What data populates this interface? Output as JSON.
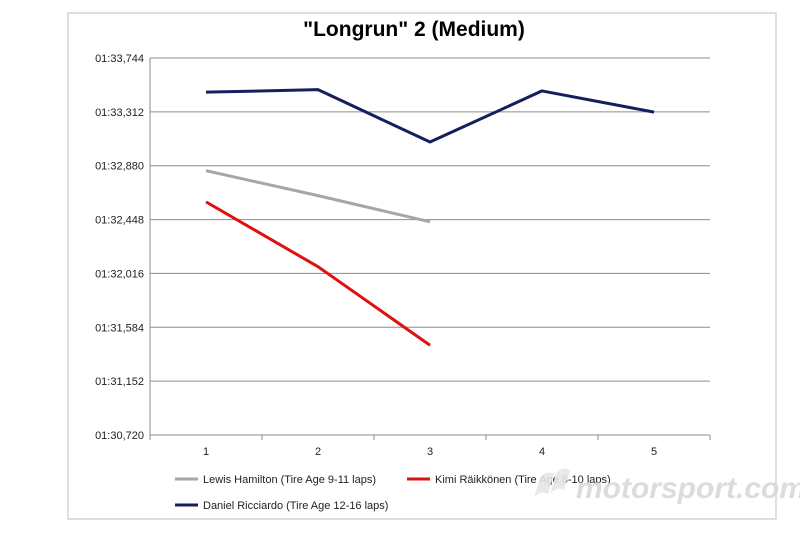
{
  "chart_data": {
    "type": "line",
    "title": "\"Longrun\" 2 (Medium)",
    "xlabel": "",
    "ylabel": "",
    "categories": [
      "1",
      "2",
      "3",
      "4",
      "5"
    ],
    "y_ticks": [
      "01:30,720",
      "01:31,152",
      "01:31,584",
      "01:32,016",
      "01:32,448",
      "01:32,880",
      "01:33,312",
      "01:33,744"
    ],
    "ylim": [
      90.72,
      93.744
    ],
    "y_tick_step": 0.432,
    "grid": "horizontal",
    "legend_position": "bottom",
    "series": [
      {
        "name": "Lewis Hamilton (Tire Age 9-11 laps)",
        "color": "#a6a6a6",
        "values": [
          92.84,
          92.64,
          92.43,
          null,
          null
        ]
      },
      {
        "name": "Kimi Räikkönen (Tire Age 8-10 laps)",
        "color": "#e01010",
        "values": [
          92.59,
          92.07,
          91.44,
          null,
          null
        ]
      },
      {
        "name": "Daniel Ricciardo (Tire Age 12-16 laps)",
        "color": "#14205e",
        "values": [
          93.47,
          93.49,
          93.07,
          93.48,
          93.31
        ]
      }
    ]
  },
  "watermark": "motorsport.com"
}
